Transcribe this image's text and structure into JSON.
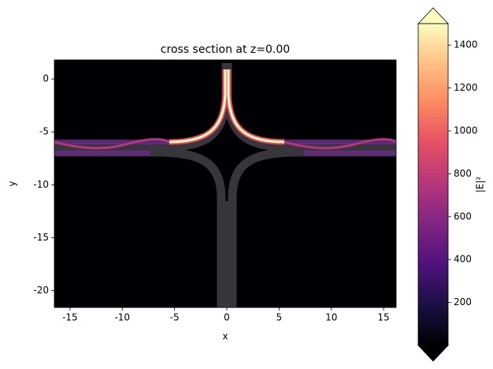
{
  "chart_data": {
    "type": "heatmap",
    "title": "cross section at z=0.00",
    "x_label": "x",
    "y_label": "y",
    "xlim": [
      -16.5,
      16.2
    ],
    "xticks": [
      -15,
      -10,
      -5,
      0,
      5,
      10,
      15
    ],
    "ylim": [
      -21.6,
      1.8
    ],
    "yticks": [
      0,
      -5,
      -10,
      -15,
      -20
    ],
    "colorbar": {
      "label": "|E|²",
      "clim": [
        0,
        1500
      ],
      "ticks": [
        200,
        400,
        600,
        800,
        1000,
        1200,
        1400
      ]
    }
  }
}
